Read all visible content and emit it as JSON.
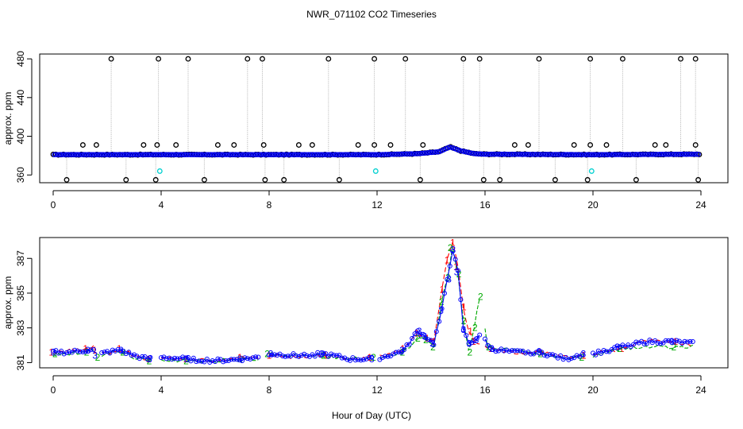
{
  "title": "NWR_071102  CO2 Timeseries",
  "xlabel": "Hour of Day (UTC)",
  "chart_data": [
    {
      "type": "scatter",
      "ylabel": "approx. ppm",
      "xlim": [
        -0.5,
        25
      ],
      "ylim": [
        352,
        485
      ],
      "x_ticks": [
        0,
        4,
        8,
        12,
        16,
        20,
        24
      ],
      "y_ticks": [
        360,
        400,
        440,
        480
      ],
      "y_tick_labels": [
        "360",
        "400",
        "440",
        "480"
      ],
      "colors": {
        "raw": "#000000",
        "lines": "#aaaaaa",
        "smooth": "#0000ff",
        "flag": "#00d0d0"
      },
      "baseline": [
        [
          0,
          381
        ],
        [
          12,
          381
        ],
        [
          13.5,
          382
        ],
        [
          14.3,
          384
        ],
        [
          14.7,
          389
        ],
        [
          15.1,
          385
        ],
        [
          15.6,
          382
        ],
        [
          16,
          381.5
        ],
        [
          20,
          381
        ],
        [
          24,
          381.5
        ]
      ],
      "outliers_high": [
        2.15,
        3.9,
        5.0,
        7.2,
        7.75,
        10.2,
        11.9,
        13.05,
        15.2,
        15.8,
        18.0,
        19.9,
        21.1,
        23.25,
        23.8
      ],
      "outliers_low": [
        0.5,
        2.7,
        3.8,
        5.6,
        7.85,
        8.55,
        10.6,
        13.6,
        15.95,
        16.55,
        18.6,
        19.8,
        21.6,
        23.9
      ],
      "outliers_mid": [
        1.1,
        1.6,
        3.35,
        3.85,
        4.55,
        6.1,
        6.7,
        7.8,
        9.1,
        9.6,
        11.3,
        11.9,
        12.5,
        13.7,
        17.1,
        17.6,
        19.3,
        19.9,
        20.5,
        22.3,
        22.7,
        23.8
      ],
      "flagged": [
        [
          3.95,
          364
        ],
        [
          11.95,
          364
        ],
        [
          19.95,
          364
        ]
      ]
    },
    {
      "type": "line",
      "ylabel": "approx. ppm",
      "xlim": [
        -0.5,
        25
      ],
      "ylim": [
        380.7,
        388.2
      ],
      "x_ticks": [
        0,
        4,
        8,
        12,
        16,
        20,
        24
      ],
      "y_ticks": [
        381,
        383,
        385,
        387
      ],
      "y_tick_labels": [
        "381",
        "383",
        "385",
        "387"
      ],
      "gaps": [
        [
          1.6,
          1.8
        ],
        [
          3.65,
          3.95
        ],
        [
          7.65,
          7.95
        ],
        [
          11.85,
          12.05
        ],
        [
          15.85,
          15.95
        ],
        [
          19.65,
          19.95
        ]
      ],
      "series": [
        {
          "color": "#ff0000",
          "marker": "1",
          "points": [
            [
              0,
              381.6
            ],
            [
              0.6,
              381.7
            ],
            [
              1.2,
              381.8
            ],
            [
              1.5,
              381.9
            ],
            [
              1.6,
              381.7
            ],
            [
              2,
              381.5
            ],
            [
              2.5,
              381.8
            ],
            [
              3,
              381.4
            ],
            [
              3.5,
              381.2
            ],
            [
              4,
              381.3
            ],
            [
              5,
              381.2
            ],
            [
              6,
              381.1
            ],
            [
              7,
              381.3
            ],
            [
              7.6,
              381.3
            ],
            [
              8,
              381.4
            ],
            [
              9,
              381.3
            ],
            [
              10,
              381.4
            ],
            [
              11,
              381.2
            ],
            [
              11.8,
              381.3
            ],
            [
              12.2,
              381.4
            ],
            [
              13,
              381.8
            ],
            [
              13.5,
              382.7
            ],
            [
              13.8,
              382.4
            ],
            [
              14.1,
              382.2
            ],
            [
              14.4,
              385.2
            ],
            [
              14.6,
              386.9
            ],
            [
              14.8,
              387.9
            ],
            [
              15.0,
              386.5
            ],
            [
              15.2,
              384.2
            ],
            [
              15.4,
              382.8
            ],
            [
              15.6,
              382.2
            ],
            [
              15.9,
              382.1
            ],
            [
              16.2,
              381.8
            ],
            [
              17,
              381.6
            ],
            [
              18,
              381.6
            ],
            [
              19,
              381.3
            ],
            [
              19.6,
              381.4
            ],
            [
              20,
              381.5
            ],
            [
              21,
              381.8
            ],
            [
              22,
              382.3
            ],
            [
              23,
              382.2
            ],
            [
              23.7,
              382.0
            ]
          ]
        },
        {
          "color": "#00aa00",
          "marker": "2",
          "points": [
            [
              0,
              381.5
            ],
            [
              0.6,
              381.5
            ],
            [
              1.2,
              381.6
            ],
            [
              1.5,
              381.7
            ],
            [
              1.6,
              381.3
            ],
            [
              2,
              381.6
            ],
            [
              2.5,
              381.6
            ],
            [
              3,
              381.3
            ],
            [
              3.5,
              381.1
            ],
            [
              4,
              381.2
            ],
            [
              5,
              381.1
            ],
            [
              6,
              381.1
            ],
            [
              7,
              381.2
            ],
            [
              7.6,
              381.2
            ],
            [
              8,
              381.5
            ],
            [
              9,
              381.4
            ],
            [
              10,
              381.4
            ],
            [
              11,
              381.2
            ],
            [
              11.8,
              381.3
            ],
            [
              12.2,
              381.3
            ],
            [
              13,
              381.6
            ],
            [
              13.5,
              382.4
            ],
            [
              13.8,
              382.3
            ],
            [
              14.1,
              381.9
            ],
            [
              14.4,
              384.5
            ],
            [
              14.6,
              385.9
            ],
            [
              14.8,
              387.6
            ],
            [
              15.0,
              386.1
            ],
            [
              15.2,
              383.4
            ],
            [
              15.4,
              381.6
            ],
            [
              15.6,
              383.0
            ],
            [
              15.8,
              384.8
            ],
            [
              16.1,
              381.9
            ],
            [
              17,
              381.7
            ],
            [
              18,
              381.5
            ],
            [
              19,
              381.3
            ],
            [
              19.6,
              381.3
            ],
            [
              20,
              381.4
            ],
            [
              21,
              381.8
            ],
            [
              22,
              381.9
            ],
            [
              23,
              381.9
            ],
            [
              23.7,
              381.9
            ]
          ]
        },
        {
          "color": "#0000ff",
          "marker": "3",
          "points": [
            [
              0,
              381.6
            ],
            [
              0.6,
              381.6
            ],
            [
              1.2,
              381.7
            ],
            [
              1.5,
              381.7
            ],
            [
              1.6,
              381.4
            ],
            [
              2,
              381.6
            ],
            [
              2.5,
              381.7
            ],
            [
              3,
              381.4
            ],
            [
              3.5,
              381.2
            ],
            [
              4,
              381.3
            ],
            [
              5,
              381.2
            ],
            [
              6,
              381.1
            ],
            [
              7,
              381.2
            ],
            [
              7.6,
              381.3
            ],
            [
              8,
              381.5
            ],
            [
              9,
              381.4
            ],
            [
              10,
              381.5
            ],
            [
              11,
              381.2
            ],
            [
              11.8,
              381.2
            ],
            [
              12.2,
              381.3
            ],
            [
              13,
              381.7
            ],
            [
              13.5,
              382.8
            ],
            [
              13.8,
              382.5
            ],
            [
              14.1,
              382.1
            ],
            [
              14.4,
              384.0
            ],
            [
              14.6,
              385.8
            ],
            [
              14.8,
              387.5
            ],
            [
              15.0,
              386.2
            ],
            [
              15.2,
              382.9
            ],
            [
              15.4,
              382.1
            ],
            [
              15.6,
              382.3
            ],
            [
              15.9,
              382.6
            ],
            [
              16.2,
              381.8
            ],
            [
              17,
              381.6
            ],
            [
              18,
              381.6
            ],
            [
              19,
              381.2
            ],
            [
              19.6,
              381.5
            ],
            [
              20,
              381.5
            ],
            [
              21,
              381.9
            ],
            [
              22,
              382.2
            ],
            [
              23,
              382.2
            ],
            [
              23.7,
              382.1
            ]
          ]
        }
      ]
    }
  ]
}
